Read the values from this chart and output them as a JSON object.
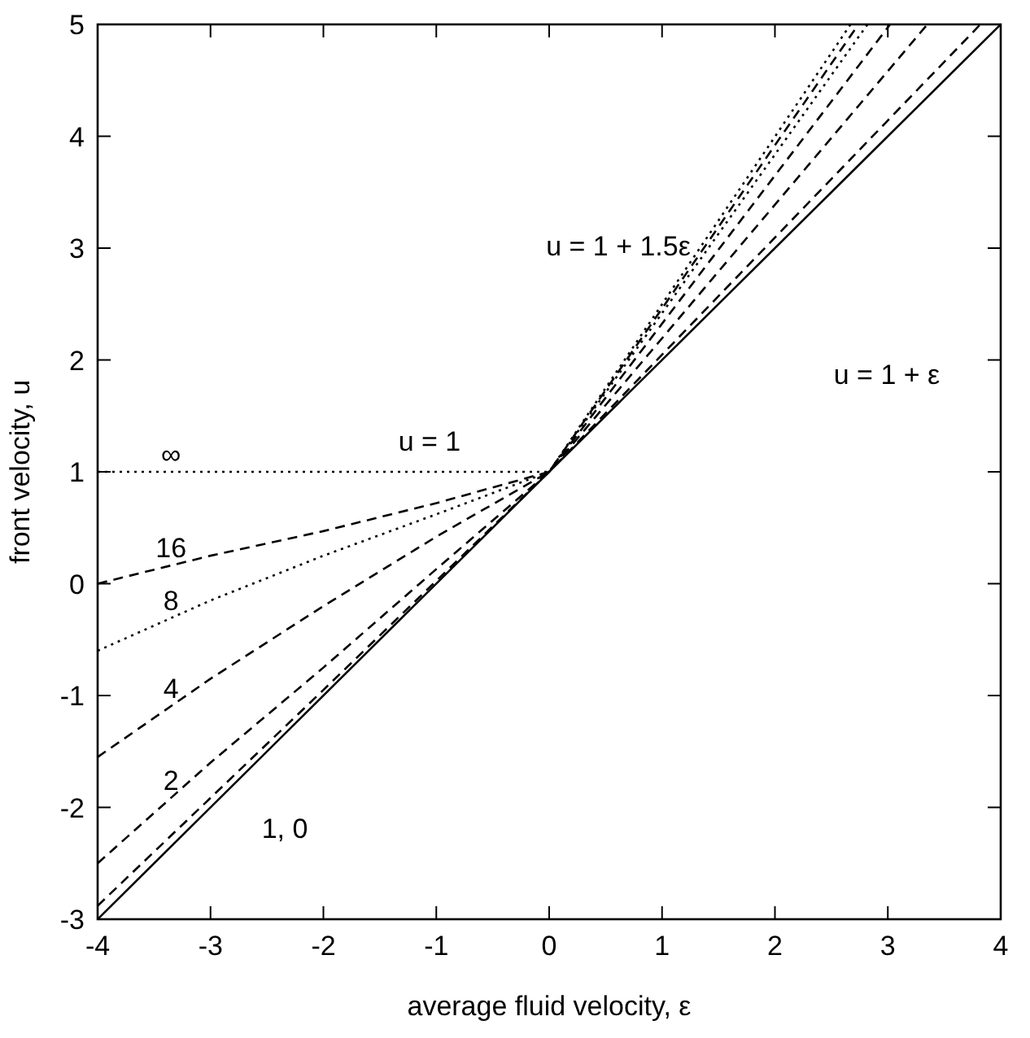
{
  "chart_data": {
    "type": "line",
    "xlabel": "average fluid velocity, ε",
    "ylabel": "front velocity, u",
    "xlim": [
      -4,
      4
    ],
    "ylim": [
      -3,
      5
    ],
    "xticks": [
      -4,
      -3,
      -2,
      -1,
      0,
      1,
      2,
      3,
      4
    ],
    "yticks": [
      -3,
      -2,
      -1,
      0,
      1,
      2,
      3,
      4,
      5
    ],
    "grid": false,
    "marker": "none",
    "series": [
      {
        "name": "∞",
        "color": "#000000",
        "line_style": "dotted",
        "x": [
          -4,
          0,
          2.67
        ],
        "values": [
          1,
          1,
          5
        ]
      },
      {
        "name": "16",
        "color": "#000000",
        "line_style": "dashed",
        "x": [
          -4,
          -3,
          -2,
          -1,
          0,
          2.74
        ],
        "values": [
          0,
          0.25,
          0.47,
          0.72,
          1,
          5
        ]
      },
      {
        "name": "8",
        "color": "#000000",
        "line_style": "dotted",
        "x": [
          -4,
          -3,
          -2,
          -1,
          0,
          2.82
        ],
        "values": [
          -0.6,
          -0.15,
          0.25,
          0.62,
          1,
          5
        ]
      },
      {
        "name": "4",
        "color": "#000000",
        "line_style": "dashed",
        "x": [
          -4,
          -3,
          -2,
          -1,
          0,
          3.02
        ],
        "values": [
          -1.55,
          -0.85,
          -0.2,
          0.42,
          1,
          5
        ]
      },
      {
        "name": "2",
        "color": "#000000",
        "line_style": "dashed",
        "x": [
          -4,
          -3,
          -2,
          -1,
          0,
          3.35
        ],
        "values": [
          -2.5,
          -1.6,
          -0.75,
          0.13,
          1,
          5
        ]
      },
      {
        "color": "#000000",
        "line_style": "dashed",
        "x": [
          -4,
          -2,
          0,
          3.82
        ],
        "values": [
          -2.88,
          -0.95,
          1,
          5
        ]
      },
      {
        "color": "#000000",
        "line_style": "solid",
        "x": [
          -4,
          4
        ],
        "values": [
          -3,
          5
        ]
      }
    ],
    "annotations": [
      "u = 1",
      "u = 1 + 1.5ε",
      "u = 1 + ε",
      "1, 0"
    ]
  }
}
